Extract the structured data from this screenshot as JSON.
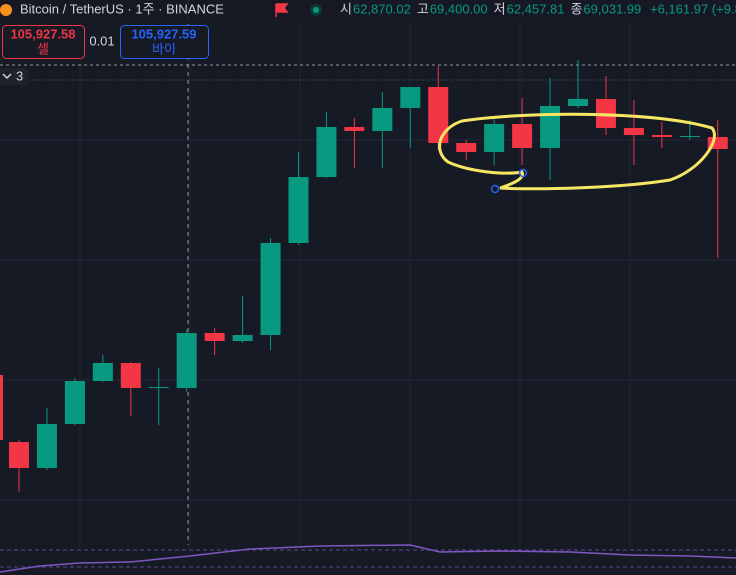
{
  "header": {
    "symbol": "Bitcoin / TetherUS · 1주 · BINANCE",
    "ohlc": [
      {
        "label": "시",
        "value": "62,870.02"
      },
      {
        "label": "고",
        "value": "69,400.00"
      },
      {
        "label": "저",
        "value": "62,457.81"
      },
      {
        "label": "종",
        "value": "69,031.99"
      }
    ],
    "change": "+6,161.97 (+9.8"
  },
  "trade": {
    "sell_price": "105,927.58",
    "sell_label": "셀",
    "spread": "0.01",
    "buy_price": "105,927.59",
    "buy_label": "바이"
  },
  "indicator_count": "3",
  "chart_data": {
    "type": "candlestick",
    "ylim": [
      45286,
      106326
    ],
    "open": [
      56822,
      53910,
      58838,
      63654,
      65670,
      62870,
      62870.02,
      69030,
      68134,
      68806,
      79110,
      86502,
      92102,
      91654,
      94230,
      96582,
      90310,
      89302,
      92438,
      89750,
      94454,
      95238,
      91990,
      91206,
      90982,
      90982
    ],
    "high": [
      57046,
      60630,
      63990,
      66566,
      65782,
      65110,
      69400,
      69590,
      73174,
      79670,
      89302,
      93782,
      93110,
      96022,
      96582,
      98934,
      90646,
      93110,
      95350,
      97590,
      99606,
      97814,
      95126,
      92662,
      92886,
      92886
    ],
    "low": [
      51222,
      53686,
      58726,
      63542,
      59734,
      58726,
      62457.81,
      66566,
      67910,
      67126,
      78886,
      86390,
      87510,
      87510,
      89750,
      89526,
      88406,
      87846,
      87846,
      86166,
      94230,
      91206,
      87846,
      89750,
      90646,
      77430
    ],
    "close": [
      53910,
      58838,
      63654,
      65670,
      62870,
      62982,
      69031.99,
      68134,
      68806,
      79110,
      86502,
      92102,
      91654,
      94230,
      96582,
      90310,
      89302,
      92438,
      89750,
      94454,
      95238,
      91990,
      91206,
      90982,
      91094,
      89638
    ]
  }
}
